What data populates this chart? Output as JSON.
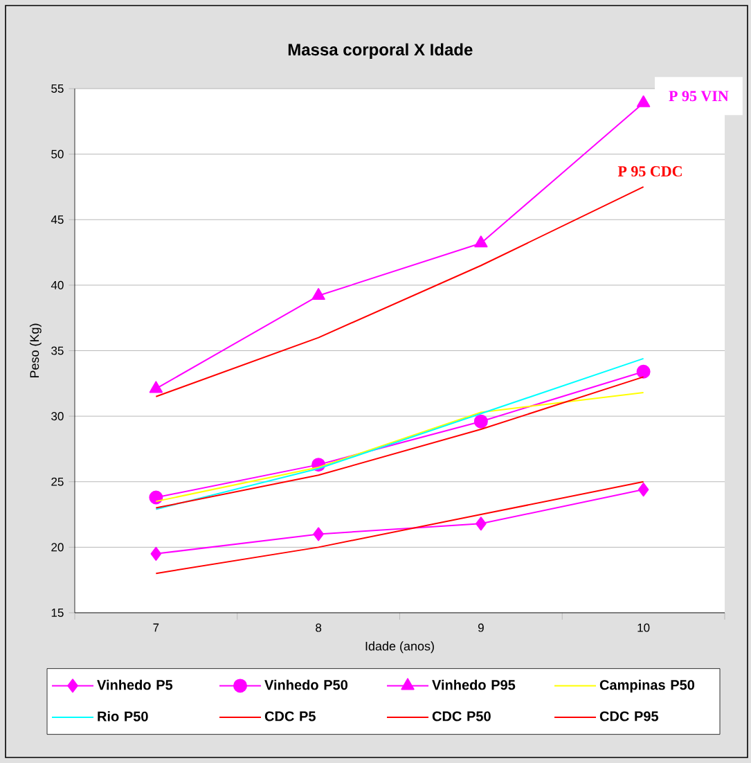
{
  "chart_data": {
    "type": "line",
    "title": "Massa corporal X Idade",
    "xlabel": "Idade (anos)",
    "ylabel": "Peso (Kg)",
    "categories": [
      "7",
      "8",
      "9",
      "10"
    ],
    "ylim": [
      15,
      55
    ],
    "yticks": [
      15,
      20,
      25,
      30,
      35,
      40,
      45,
      50,
      55
    ],
    "grid": "y",
    "legend": "bottom",
    "line_style": "solid",
    "series": [
      {
        "name": "Vinhedo P5",
        "color": "#ff00ff",
        "marker": "diamond",
        "values": [
          19.5,
          21.0,
          21.8,
          24.4
        ]
      },
      {
        "name": "Vinhedo P50",
        "color": "#ff00ff",
        "marker": "circle",
        "values": [
          23.8,
          26.3,
          29.6,
          33.4
        ]
      },
      {
        "name": "Vinhedo P95",
        "color": "#ff00ff",
        "marker": "triangle",
        "values": [
          32.1,
          39.2,
          43.2,
          53.9
        ]
      },
      {
        "name": "Campinas P50",
        "color": "#ffff00",
        "marker": "none",
        "values": [
          23.5,
          26.1,
          30.3,
          31.8
        ]
      },
      {
        "name": "Rio P50",
        "color": "#00ffff",
        "marker": "none",
        "values": [
          22.9,
          26.0,
          30.2,
          34.4
        ]
      },
      {
        "name": "CDC P5",
        "color": "#ff0000",
        "marker": "none",
        "values": [
          18.0,
          20.0,
          22.5,
          25.0
        ]
      },
      {
        "name": "CDC P50",
        "color": "#ff0000",
        "marker": "none",
        "values": [
          23.0,
          25.5,
          29.0,
          33.0
        ]
      },
      {
        "name": "CDC P95",
        "color": "#ff0000",
        "marker": "none",
        "values": [
          31.5,
          36.0,
          41.5,
          47.5
        ]
      }
    ],
    "annotations": [
      {
        "text": "P 95 VIN",
        "x": "10",
        "y": 53.9
      },
      {
        "text": "P 95 CDC",
        "x": "10",
        "y": 47.5
      }
    ]
  }
}
